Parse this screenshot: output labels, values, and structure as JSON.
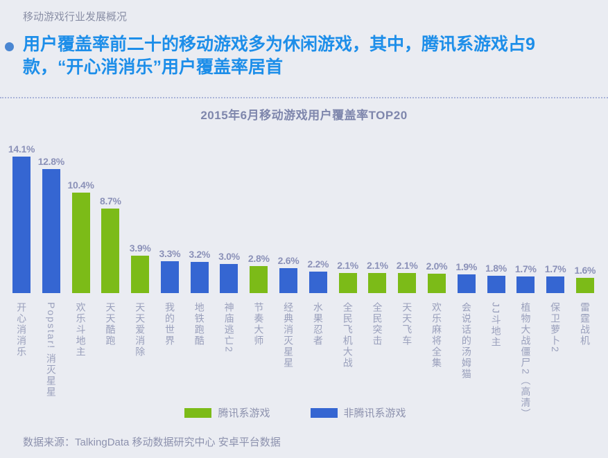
{
  "page": {
    "section_label": "移动游戏行业发展概况",
    "headline": {
      "line1": "用户覆盖率前二十的移动游戏多为休闲游戏，其中，腾讯系游戏占9",
      "line2": "款，“开心消消乐”用户覆盖率居首"
    },
    "source": "数据来源：TalkingData 移动数据研究中心 安卓平台数据"
  },
  "chart_data": {
    "type": "bar",
    "title": "2015年6月移动游戏用户覆盖率TOP20",
    "unit": "%",
    "ylim": [
      0,
      15
    ],
    "grid": false,
    "legend_position": "bottom",
    "colors": {
      "tencent": "#7cbb18",
      "non_tencent": "#3566d2"
    },
    "legend": [
      {
        "key": "tencent",
        "label": "腾讯系游戏",
        "color": "#7cbb18"
      },
      {
        "key": "non_tencent",
        "label": "非腾讯系游戏",
        "color": "#3566d2"
      }
    ],
    "categories": [
      "开心消消乐",
      "Popstar! 消灭星星",
      "欢乐斗地主",
      "天天酷跑",
      "天天爱消除",
      "我的世界",
      "地铁跑酷",
      "神庙逃亡2",
      "节奏大师",
      "经典消灭星星",
      "水果忍者",
      "全民飞机大战",
      "全民突击",
      "天天飞车",
      "欢乐麻将全集",
      "会说话的汤姆猫",
      "JJ斗地主",
      "植物大战僵尸2（高清）",
      "保卫萝卜2",
      "雷霆战机"
    ],
    "bars": [
      {
        "name": "开心消消乐",
        "value": 14.1,
        "label": "14.1%",
        "group": "non_tencent"
      },
      {
        "name": "Popstar! 消灭星星",
        "value": 12.8,
        "label": "12.8%",
        "group": "non_tencent"
      },
      {
        "name": "欢乐斗地主",
        "value": 10.4,
        "label": "10.4%",
        "group": "tencent"
      },
      {
        "name": "天天酷跑",
        "value": 8.7,
        "label": "8.7%",
        "group": "tencent"
      },
      {
        "name": "天天爱消除",
        "value": 3.9,
        "label": "3.9%",
        "group": "tencent"
      },
      {
        "name": "我的世界",
        "value": 3.3,
        "label": "3.3%",
        "group": "non_tencent"
      },
      {
        "name": "地铁跑酷",
        "value": 3.2,
        "label": "3.2%",
        "group": "non_tencent"
      },
      {
        "name": "神庙逃亡2",
        "value": 3.0,
        "label": "3.0%",
        "group": "non_tencent"
      },
      {
        "name": "节奏大师",
        "value": 2.8,
        "label": "2.8%",
        "group": "tencent"
      },
      {
        "name": "经典消灭星星",
        "value": 2.6,
        "label": "2.6%",
        "group": "non_tencent"
      },
      {
        "name": "水果忍者",
        "value": 2.2,
        "label": "2.2%",
        "group": "non_tencent"
      },
      {
        "name": "全民飞机大战",
        "value": 2.1,
        "label": "2.1%",
        "group": "tencent"
      },
      {
        "name": "全民突击",
        "value": 2.1,
        "label": "2.1%",
        "group": "tencent"
      },
      {
        "name": "天天飞车",
        "value": 2.1,
        "label": "2.1%",
        "group": "tencent"
      },
      {
        "name": "欢乐麻将全集",
        "value": 2.0,
        "label": "2.0%",
        "group": "tencent"
      },
      {
        "name": "会说话的汤姆猫",
        "value": 1.9,
        "label": "1.9%",
        "group": "non_tencent"
      },
      {
        "name": "JJ斗地主",
        "value": 1.8,
        "label": "1.8%",
        "group": "non_tencent"
      },
      {
        "name": "植物大战僵尸2（高清）",
        "value": 1.7,
        "label": "1.7%",
        "group": "non_tencent"
      },
      {
        "name": "保卫萝卜2",
        "value": 1.7,
        "label": "1.7%",
        "group": "non_tencent"
      },
      {
        "name": "雷霆战机",
        "value": 1.6,
        "label": "1.6%",
        "group": "tencent"
      }
    ]
  }
}
